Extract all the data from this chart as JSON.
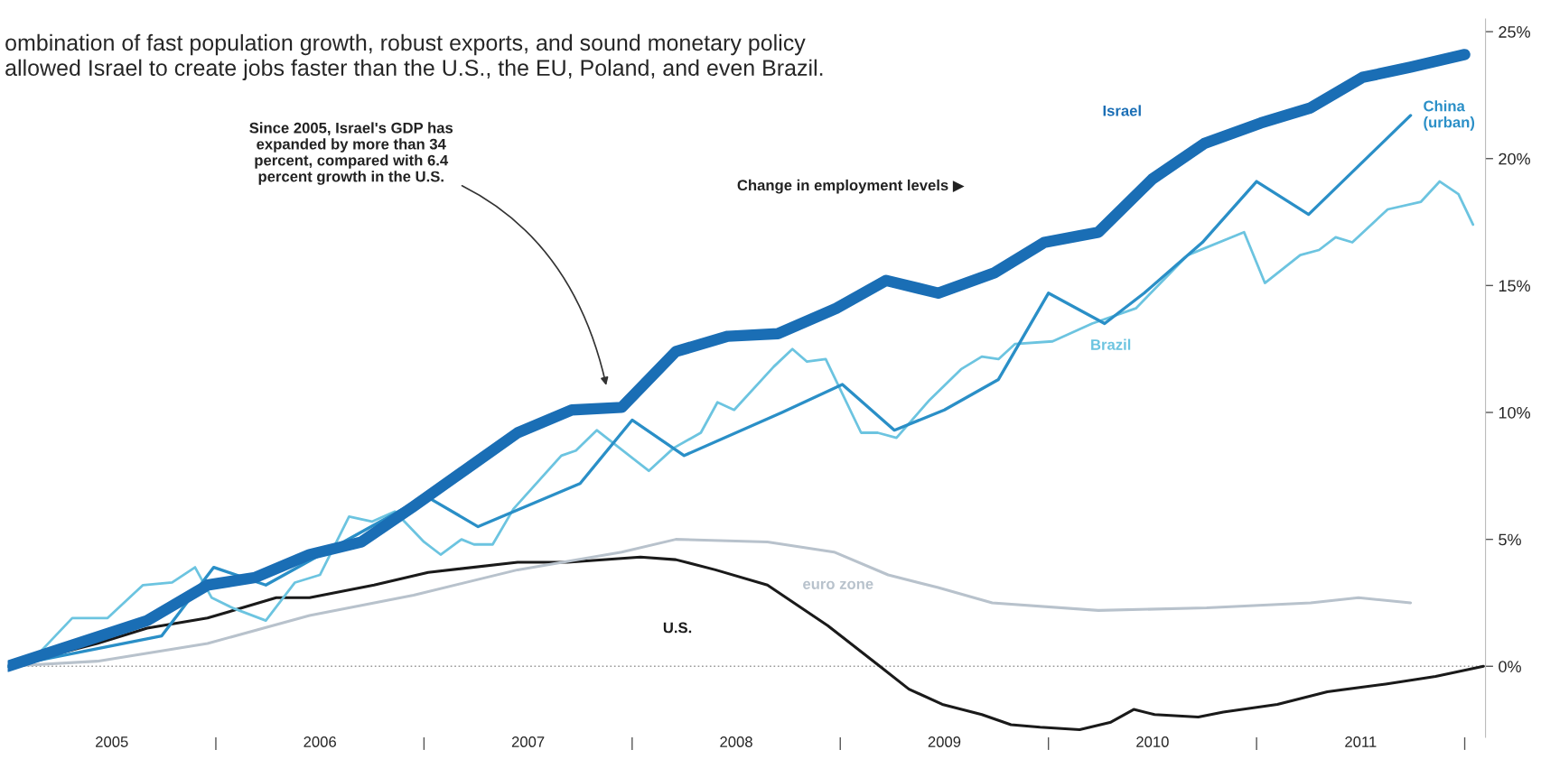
{
  "chart_data": {
    "type": "line",
    "title": "ombination of fast population growth, robust exports, and sound monetary policy\nallowed Israel to create jobs faster than the U.S., the EU, Poland, and even Brazil.",
    "series": [
      {
        "name": "Israel",
        "color": "#1a6eb5",
        "x": [
          2005.0,
          2005.67,
          2005.96,
          2006.19,
          2006.45,
          2006.7,
          2006.95,
          2007.45,
          2007.71,
          2007.95,
          2008.21,
          2008.46,
          2008.7,
          2008.98,
          2009.22,
          2009.47,
          2009.74,
          2009.98,
          2010.24,
          2010.5,
          2010.75,
          2011.02,
          2011.26,
          2011.51,
          2011.74,
          2012.0
        ],
        "values": [
          0,
          1.8,
          3.2,
          3.5,
          4.4,
          4.9,
          6.3,
          9.2,
          10.1,
          10.2,
          12.4,
          13.0,
          13.1,
          14.1,
          15.2,
          14.7,
          15.5,
          16.7,
          17.1,
          19.2,
          20.6,
          21.4,
          22.0,
          23.2,
          23.6,
          24.1
        ]
      },
      {
        "name": "China\n(urban)",
        "color": "#2a8fc7",
        "x": [
          2005.0,
          2005.74,
          2005.99,
          2006.24,
          2007.01,
          2007.26,
          2007.75,
          2008.0,
          2008.25,
          2008.72,
          2009.01,
          2009.26,
          2009.5,
          2009.76,
          2010.0,
          2010.27,
          2010.46,
          2010.74,
          2011.0,
          2011.25,
          2011.74
        ],
        "values": [
          0,
          1.2,
          3.9,
          3.2,
          6.7,
          5.5,
          7.2,
          9.7,
          8.3,
          10.0,
          11.1,
          9.3,
          10.1,
          11.3,
          14.7,
          13.5,
          14.7,
          16.7,
          19.1,
          17.8,
          21.7
        ]
      },
      {
        "name": "Brazil",
        "color": "#6cc4e0",
        "x": [
          2005.0,
          2005.16,
          2005.31,
          2005.48,
          2005.65,
          2005.79,
          2005.9,
          2005.98,
          2006.08,
          2006.24,
          2006.38,
          2006.5,
          2006.64,
          2006.75,
          2006.86,
          2007.0,
          2007.08,
          2007.18,
          2007.24,
          2007.33,
          2007.43,
          2007.66,
          2007.73,
          2007.83,
          2008.08,
          2008.2,
          2008.33,
          2008.41,
          2008.49,
          2008.68,
          2008.77,
          2008.84,
          2008.93,
          2009.1,
          2009.18,
          2009.27,
          2009.43,
          2009.58,
          2009.68,
          2009.76,
          2009.84,
          2010.02,
          2010.21,
          2010.42,
          2010.67,
          2010.94,
          2011.04,
          2011.21,
          2011.3,
          2011.38,
          2011.46,
          2011.63,
          2011.79,
          2011.88,
          2011.97,
          2012.04
        ],
        "values": [
          0,
          0.6,
          1.9,
          1.9,
          3.2,
          3.3,
          3.9,
          2.7,
          2.3,
          1.8,
          3.3,
          3.6,
          5.9,
          5.7,
          6.1,
          4.9,
          4.4,
          5.0,
          4.8,
          4.8,
          6.2,
          8.3,
          8.5,
          9.3,
          7.7,
          8.6,
          9.2,
          10.4,
          10.1,
          11.8,
          12.5,
          12.0,
          12.1,
          9.2,
          9.2,
          9.0,
          10.5,
          11.7,
          12.2,
          12.1,
          12.7,
          12.8,
          13.5,
          14.1,
          16.2,
          17.1,
          15.1,
          16.2,
          16.4,
          16.9,
          16.7,
          18.0,
          18.3,
          19.1,
          18.6,
          17.4
        ]
      },
      {
        "name": "euro zone",
        "color": "#b8c2cc",
        "x": [
          2005.0,
          2005.43,
          2005.96,
          2006.45,
          2006.95,
          2007.45,
          2007.95,
          2008.21,
          2008.65,
          2008.97,
          2009.23,
          2009.47,
          2009.73,
          2010.24,
          2010.76,
          2011.26,
          2011.49,
          2011.74
        ],
        "values": [
          0,
          0.2,
          0.9,
          2.0,
          2.8,
          3.8,
          4.5,
          5.0,
          4.9,
          4.5,
          3.6,
          3.1,
          2.5,
          2.2,
          2.3,
          2.5,
          2.7,
          2.5
        ]
      },
      {
        "name": "U.S.",
        "color": "#1a1a1a",
        "x": [
          2005.0,
          2005.43,
          2005.67,
          2005.96,
          2006.29,
          2006.45,
          2006.76,
          2007.02,
          2007.45,
          2007.69,
          2008.04,
          2008.21,
          2008.4,
          2008.65,
          2008.94,
          2009.19,
          2009.33,
          2009.49,
          2009.68,
          2009.82,
          2009.96,
          2010.15,
          2010.3,
          2010.41,
          2010.51,
          2010.72,
          2010.84,
          2011.1,
          2011.34,
          2011.62,
          2011.86,
          2012.09
        ],
        "values": [
          0,
          0.9,
          1.5,
          1.9,
          2.7,
          2.7,
          3.2,
          3.7,
          4.1,
          4.1,
          4.3,
          4.2,
          3.8,
          3.2,
          1.6,
          0,
          -0.9,
          -1.5,
          -1.9,
          -2.3,
          -2.4,
          -2.5,
          -2.2,
          -1.7,
          -1.9,
          -2.0,
          -1.8,
          -1.5,
          -1.0,
          -0.7,
          -0.4,
          0
        ]
      }
    ],
    "annotations": [
      "Since 2005, Israel's GDP has\nexpanded by more than 34\npercent, compared with 6.4\npercent growth in the U.S.",
      "Change in employment levels ▶"
    ],
    "ref_lines": [
      {
        "axis": "y",
        "value": 0,
        "color": "#999999",
        "line_style": "dotted"
      }
    ],
    "xlim": [
      2005,
      2012.1
    ],
    "xticks": [
      {
        "value": 2005.5,
        "label": "2005"
      },
      {
        "value": 2006,
        "label": null
      },
      {
        "value": 2006.5,
        "label": "2006"
      },
      {
        "value": 2007,
        "label": null
      },
      {
        "value": 2007.5,
        "label": "2007"
      },
      {
        "value": 2008,
        "label": null
      },
      {
        "value": 2008.5,
        "label": "2008"
      },
      {
        "value": 2009,
        "label": null
      },
      {
        "value": 2009.5,
        "label": "2009"
      },
      {
        "value": 2010,
        "label": null
      },
      {
        "value": 2010.5,
        "label": "2010"
      },
      {
        "value": 2011,
        "label": null
      },
      {
        "value": 2011.5,
        "label": "2011"
      },
      {
        "value": 2012,
        "label": null
      }
    ],
    "ylim": [
      -2.8,
      25.5
    ],
    "yticks": [
      {
        "value": 0,
        "label": "0%"
      },
      {
        "value": 5,
        "label": "5%"
      },
      {
        "value": 10,
        "label": "10%"
      },
      {
        "value": 15,
        "label": "15%"
      },
      {
        "value": 20,
        "label": "20%"
      },
      {
        "value": 25,
        "label": "25%"
      }
    ],
    "grid": false,
    "legend": false,
    "marker": "none",
    "line_style": "solid"
  }
}
